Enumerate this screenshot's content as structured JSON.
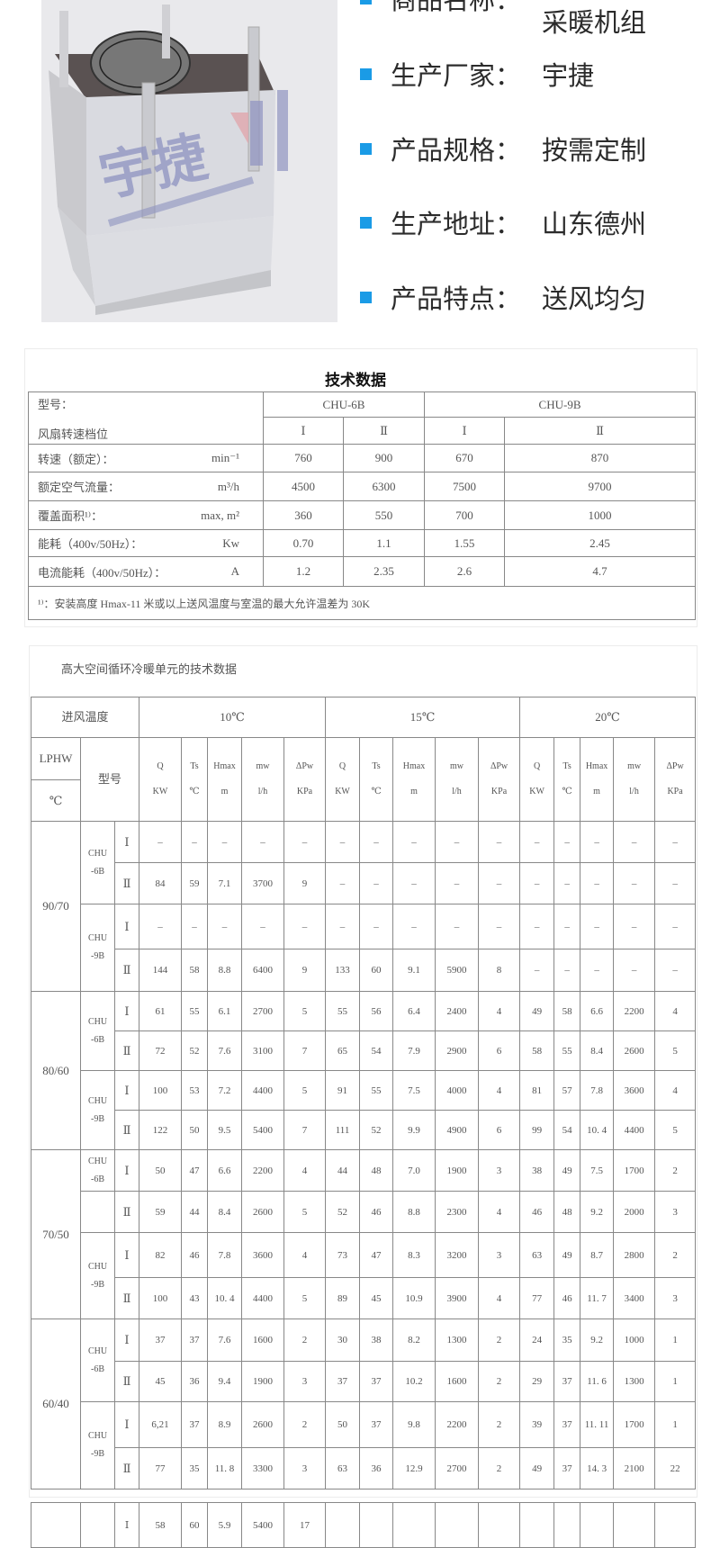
{
  "photo": {
    "watermark": "宇捷"
  },
  "specs": [
    {
      "label": "商品名称：",
      "value": "采暖机组"
    },
    {
      "label": "生产厂家：",
      "value": "宇捷"
    },
    {
      "label": "产品规格：",
      "value": "按需定制"
    },
    {
      "label": "生产地址：",
      "value": "山东德州"
    },
    {
      "label": "产品特点：",
      "value": "送风均匀"
    }
  ],
  "colors": {
    "bullet": "#1a9be6"
  },
  "table1": {
    "title": "技术数据",
    "model_label": "型号：",
    "speed_label": "风扇转速档位",
    "models": [
      "CHU-6B",
      "CHU-9B"
    ],
    "speeds": [
      "Ⅰ",
      "Ⅱ",
      "Ⅰ",
      "Ⅱ"
    ],
    "rows": [
      {
        "label": "转速（额定）：",
        "unit": "min⁻¹",
        "values": [
          "760",
          "900",
          "670",
          "870"
        ]
      },
      {
        "label": "额定空气流量：",
        "unit": "m³/h",
        "values": [
          "4500",
          "6300",
          "7500",
          "9700"
        ]
      },
      {
        "label": "覆盖面积¹⁾：",
        "unit": "max, m²",
        "values": [
          "360",
          "550",
          "700",
          "1000"
        ]
      },
      {
        "label": "能耗（400v/50Hz）：",
        "unit": "Kw",
        "values": [
          "0.70",
          "1.1",
          "1.55",
          "2.45"
        ]
      },
      {
        "label": "电流能耗（400v/50Hz）：",
        "unit": "A",
        "values": [
          "1.2",
          "2.35",
          "2.6",
          "4.7"
        ]
      }
    ],
    "footnote": "¹⁾：安装高度 Hmax-11 米或以上送风温度与室温的最大允许温差为 30K"
  },
  "table2": {
    "subtitle": "高大空间循环冷暖单元的技术数据",
    "inlet_label": "进风温度",
    "lphw_label": "LPHW",
    "unit_label": "℃",
    "model_label": "型号",
    "temps": [
      "10℃",
      "15℃",
      "20℃"
    ],
    "columns": [
      {
        "symbol": "Q",
        "unit": "KW"
      },
      {
        "symbol": "Ts",
        "unit": "℃"
      },
      {
        "symbol": "Hmax",
        "unit": "m"
      },
      {
        "symbol": "mw",
        "unit": "l/h"
      },
      {
        "symbol": "ΔPw",
        "unit": "KPa"
      }
    ],
    "groups": [
      {
        "lphw": "90/70",
        "rows": [
          {
            "model": "CHU -6B",
            "speed": "Ⅰ",
            "values": [
              "–",
              "–",
              "–",
              "–",
              "–",
              "–",
              "–",
              "–",
              "–",
              "–",
              "–",
              "–",
              "–",
              "–",
              "–"
            ]
          },
          {
            "speed": "Ⅱ",
            "values": [
              "84",
              "59",
              "7.1",
              "3700",
              "9",
              "–",
              "–",
              "–",
              "–",
              "–",
              "–",
              "–",
              "–",
              "–",
              "–"
            ]
          },
          {
            "model": "CHU -9B",
            "speed": "Ⅰ",
            "values": [
              "–",
              "–",
              "–",
              "–",
              "–",
              "–",
              "–",
              "–",
              "–",
              "–",
              "–",
              "–",
              "–",
              "–",
              "–"
            ]
          },
          {
            "speed": "Ⅱ",
            "values": [
              "144",
              "58",
              "8.8",
              "6400",
              "9",
              "133",
              "60",
              "9.1",
              "5900",
              "8",
              "–",
              "–",
              "–",
              "–",
              "–"
            ]
          }
        ]
      },
      {
        "lphw": "80/60",
        "rows": [
          {
            "model": "CHU -6B",
            "speed": "Ⅰ",
            "values": [
              "61",
              "55",
              "6.1",
              "2700",
              "5",
              "55",
              "56",
              "6.4",
              "2400",
              "4",
              "49",
              "58",
              "6.6",
              "2200",
              "4"
            ]
          },
          {
            "speed": "Ⅱ",
            "values": [
              "72",
              "52",
              "7.6",
              "3100",
              "7",
              "65",
              "54",
              "7.9",
              "2900",
              "6",
              "58",
              "55",
              "8.4",
              "2600",
              "5"
            ]
          },
          {
            "model": "CHU -9B",
            "speed": "Ⅰ",
            "values": [
              "100",
              "53",
              "7.2",
              "4400",
              "5",
              "91",
              "55",
              "7.5",
              "4000",
              "4",
              "81",
              "57",
              "7.8",
              "3600",
              "4"
            ]
          },
          {
            "speed": "Ⅱ",
            "values": [
              "122",
              "50",
              "9.5",
              "5400",
              "7",
              "111",
              "52",
              "9.9",
              "4900",
              "6",
              "99",
              "54",
              "10. 4",
              "4400",
              "5"
            ]
          }
        ]
      },
      {
        "lphw": "70/50",
        "rows": [
          {
            "model": "CHU -6B",
            "single": true,
            "speed": "Ⅰ",
            "values": [
              "50",
              "47",
              "6.6",
              "2200",
              "4",
              "44",
              "48",
              "7.0",
              "1900",
              "3",
              "38",
              "49",
              "7.5",
              "1700",
              "2"
            ]
          },
          {
            "model": "",
            "single": true,
            "speed": "Ⅱ",
            "values": [
              "59",
              "44",
              "8.4",
              "2600",
              "5",
              "52",
              "46",
              "8.8",
              "2300",
              "4",
              "46",
              "48",
              "9.2",
              "2000",
              "3"
            ]
          },
          {
            "model": "CHU -9B",
            "speed": "Ⅰ",
            "values": [
              "82",
              "46",
              "7.8",
              "3600",
              "4",
              "73",
              "47",
              "8.3",
              "3200",
              "3",
              "63",
              "49",
              "8.7",
              "2800",
              "2"
            ]
          },
          {
            "speed": "Ⅱ",
            "values": [
              "100",
              "43",
              "10. 4",
              "4400",
              "5",
              "89",
              "45",
              "10.9",
              "3900",
              "4",
              "77",
              "46",
              "11. 7",
              "3400",
              "3"
            ]
          }
        ]
      },
      {
        "lphw": "60/40",
        "rows": [
          {
            "model": "CHU -6B",
            "speed": "Ⅰ",
            "values": [
              "37",
              "37",
              "7.6",
              "1600",
              "2",
              "30",
              "38",
              "8.2",
              "1300",
              "2",
              "24",
              "35",
              "9.2",
              "1000",
              "1"
            ]
          },
          {
            "speed": "Ⅱ",
            "values": [
              "45",
              "36",
              "9.4",
              "1900",
              "3",
              "37",
              "37",
              "10.2",
              "1600",
              "2",
              "29",
              "37",
              "11. 6",
              "1300",
              "1"
            ]
          },
          {
            "model": "CHU -9B",
            "speed": "Ⅰ",
            "values": [
              "6,21",
              "37",
              "8.9",
              "2600",
              "2",
              "50",
              "37",
              "9.8",
              "2200",
              "2",
              "39",
              "37",
              "11. 11",
              "1700",
              "1"
            ]
          },
          {
            "speed": "Ⅱ",
            "values": [
              "77",
              "35",
              "11. 8",
              "3300",
              "3",
              "63",
              "36",
              "12.9",
              "2700",
              "2",
              "49",
              "37",
              "14. 3",
              "2100",
              "22"
            ]
          }
        ]
      }
    ]
  },
  "table3": {
    "speed": "Ⅰ",
    "values": [
      "58",
      "60",
      "5.9",
      "5400",
      "17",
      "",
      "",
      "",
      "",
      "",
      "",
      "",
      "",
      "",
      ""
    ]
  }
}
